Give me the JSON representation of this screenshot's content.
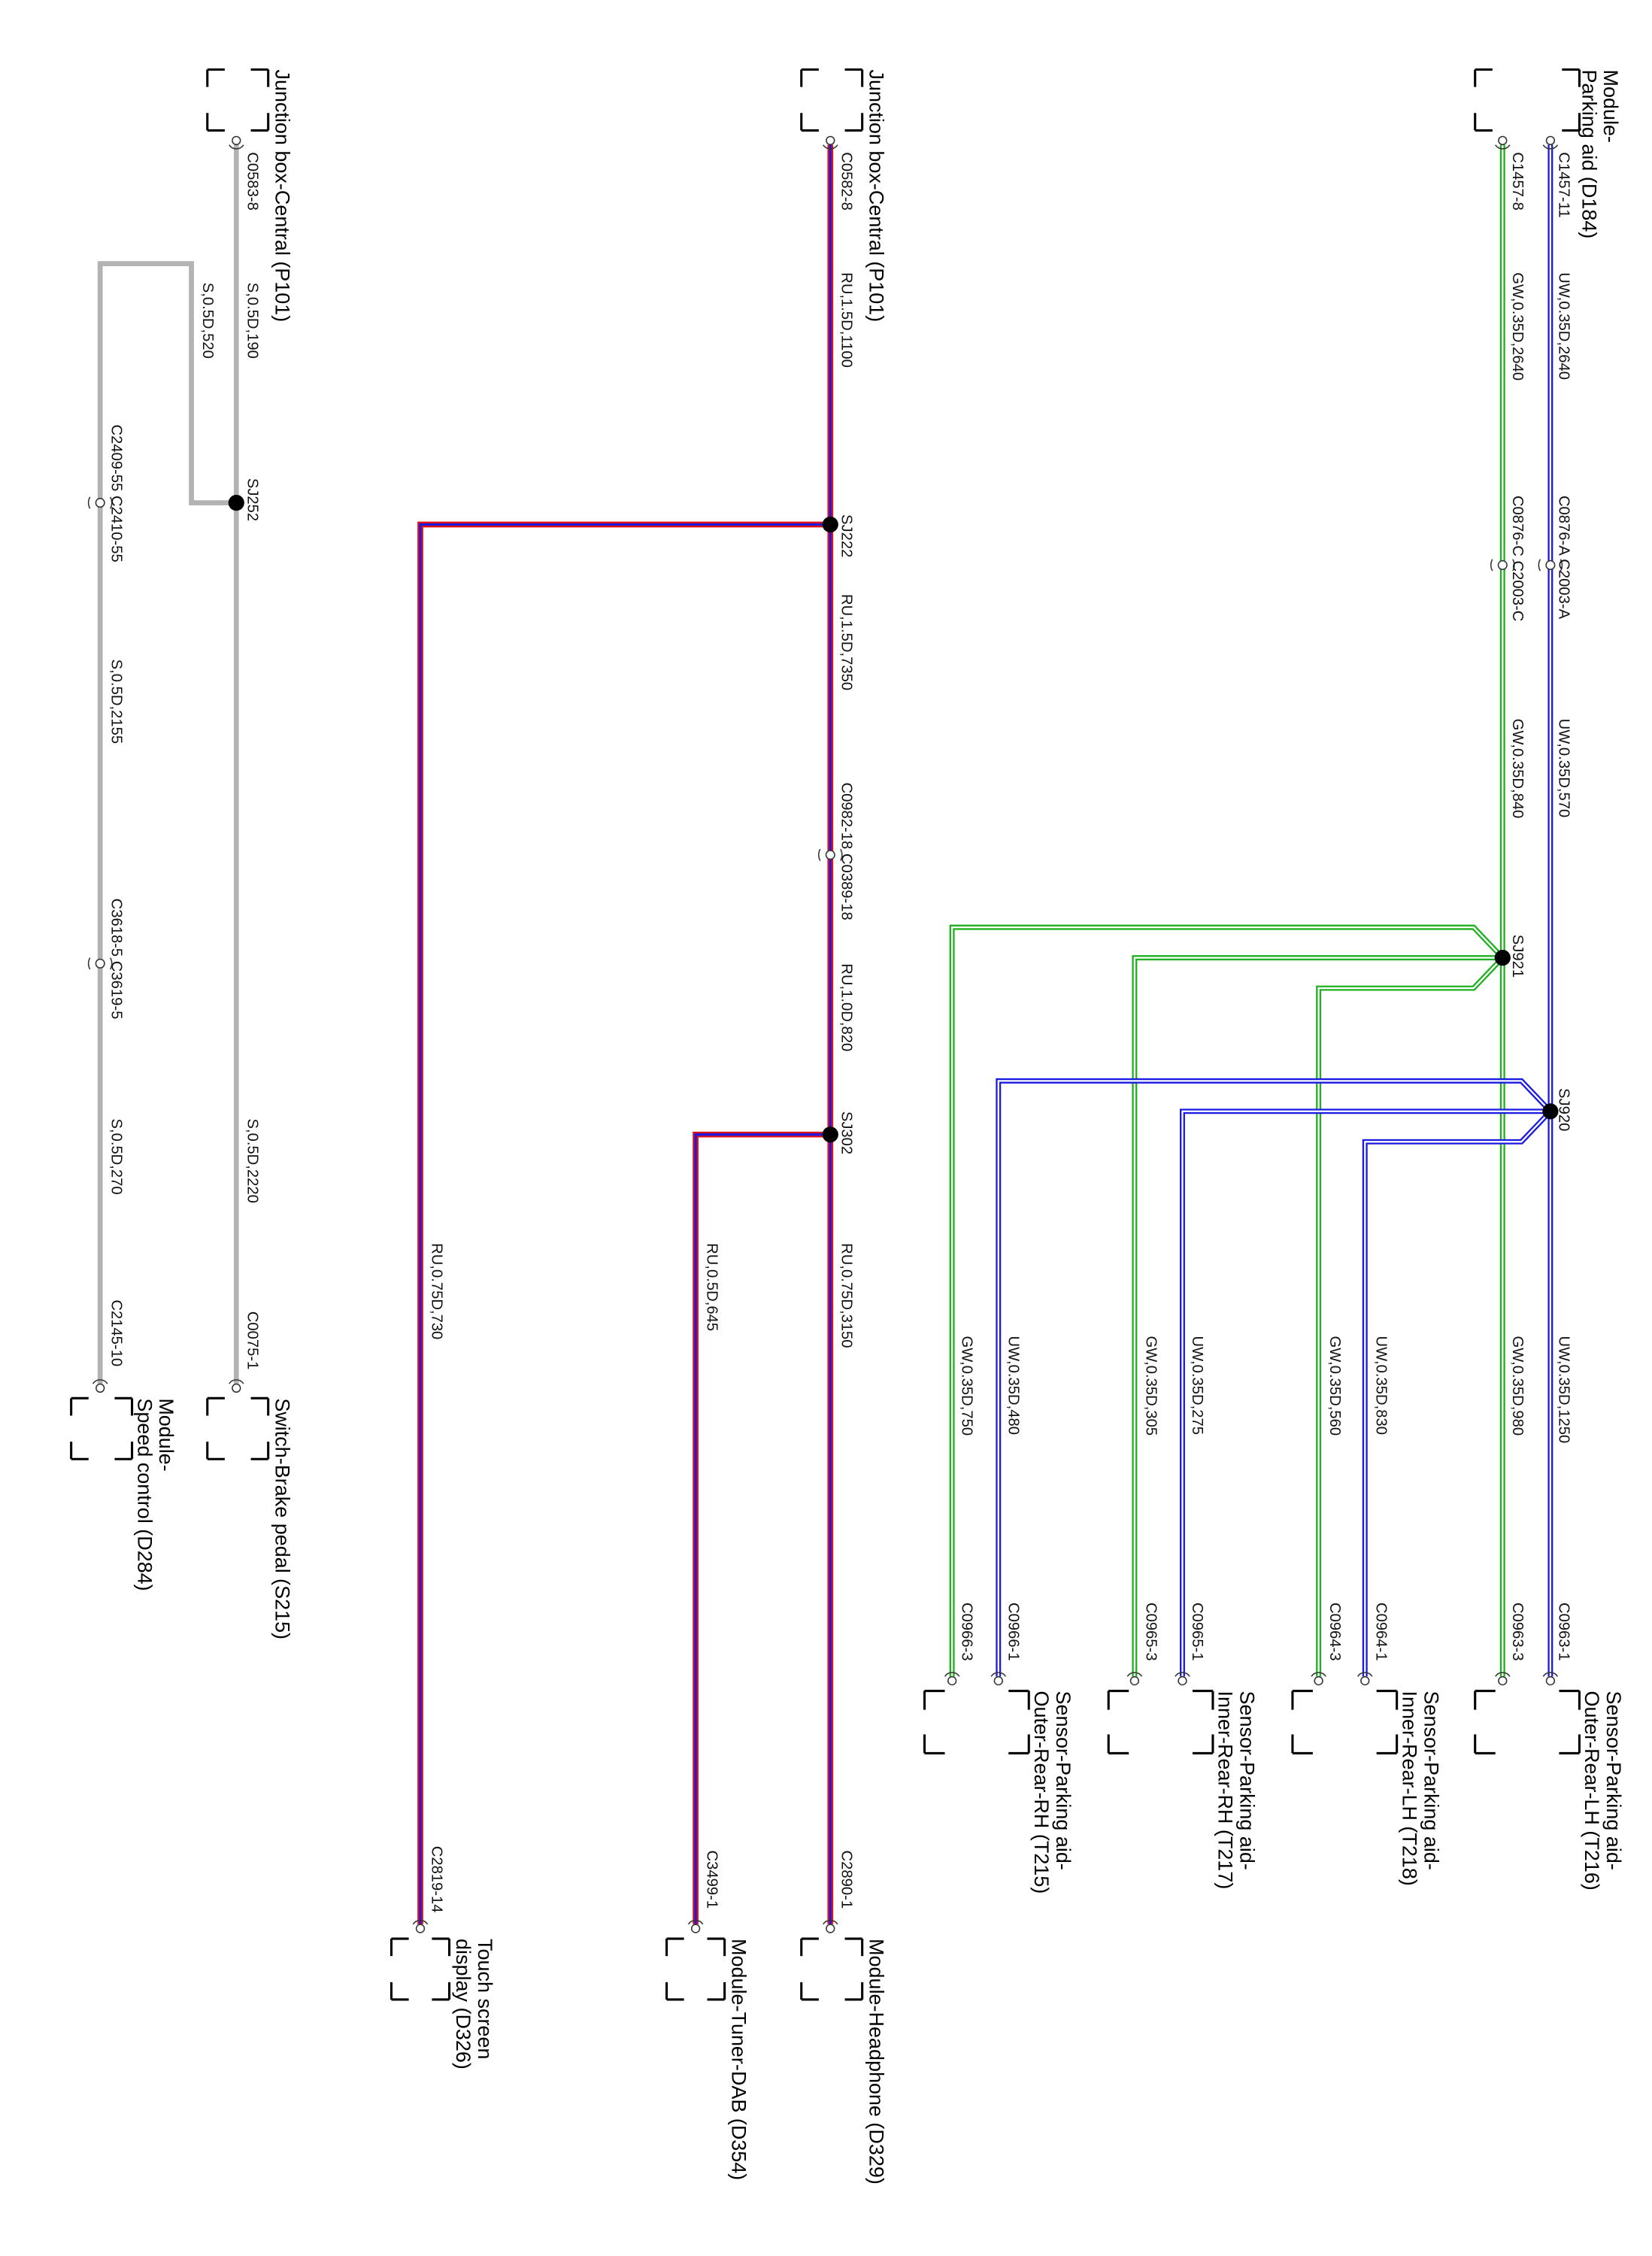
{
  "colors": {
    "green_wire": "#1fb01f",
    "blue_wire": "#1a1ae0",
    "red_wire": "#e0101a",
    "gray_wire": "#b3b3b3"
  },
  "parking": {
    "module": {
      "line1": "Module-",
      "line2": "Parking aid (D184)"
    },
    "pin_blue": "C1457-11",
    "pin_green": "C1457-8",
    "wire_blue_1": "UW,0.35D,2640",
    "wire_green_1": "GW,0.35D,2640",
    "inline_blue": "C0876-A C2003-A",
    "inline_green": "C0876-C C2003-C",
    "wire_blue_2": "UW,0.35D,570",
    "wire_green_2": "GW,0.35D,840",
    "splice_green": "SJ921",
    "splice_blue": "SJ920",
    "sensors": [
      {
        "line1": "Sensor-Parking aid-",
        "line2": "Outer-Rear-LH (T216)",
        "wire_blue": "UW,0.35D,1250",
        "wire_green": "GW,0.35D,980",
        "pin_blue": "C0963-1",
        "pin_green": "C0963-3"
      },
      {
        "line1": "Sensor-Parking aid-",
        "line2": "Inner-Rear-LH (T218)",
        "wire_blue": "UW,0.35D,830",
        "wire_green": "GW,0.35D,560",
        "pin_blue": "C0964-1",
        "pin_green": "C0964-3"
      },
      {
        "line1": "Sensor-Parking aid-",
        "line2": "Inner-Rear-RH (T217)",
        "wire_blue": "UW,0.35D,275",
        "wire_green": "GW,0.35D,305",
        "pin_blue": "C0965-1",
        "pin_green": "C0965-3"
      },
      {
        "line1": "Sensor-Parking aid-",
        "line2": "Outer-Rear-RH (T215)",
        "wire_blue": "UW,0.35D,480",
        "wire_green": "GW,0.35D,750",
        "pin_blue": "C0966-1",
        "pin_green": "C0966-3"
      }
    ]
  },
  "audio": {
    "junction": "Junction box-Central (P101)",
    "pin": "C0582-8",
    "wire_1": "RU,1.5D,1100",
    "splice_1": "SJ222",
    "wire_2": "RU,1.5D,7350",
    "inline": "C0982-18 C0389-18",
    "wire_3": "RU,1.0D,820",
    "splice_2": "SJ302",
    "wire_headphone": "RU,0.75D,3150",
    "wire_tuner": "RU,0.5D,645",
    "wire_touch": "RU,0.75D,730",
    "pin_headphone": "C2890-1",
    "pin_tuner": "C3499-1",
    "pin_touch": "C2819-14",
    "headphone": "Module-Headphone (D329)",
    "tuner": "Module-Tuner-DAB (D354)",
    "touch": {
      "line1": "Touch screen",
      "line2": "display (D326)"
    }
  },
  "brake": {
    "junction": "Junction box-Central (P101)",
    "pin": "C0583-8",
    "wire_1": "S,0.5D,190",
    "wire_branch": "S,0.5D,520",
    "splice": "SJ252",
    "inline_1": "C2409-55 C2410-55",
    "wire_2": "S,0.5D,2155",
    "inline_2": "C3618-5 C3619-5",
    "wire_3": "S,0.5D,270",
    "pin_speed": "C2145-10",
    "wire_switch": "S,0.5D,2220",
    "pin_switch": "C0075-1",
    "switch": "Switch-Brake pedal (S215)",
    "speed": {
      "line1": "Module-",
      "line2": "Speed control (D284)"
    }
  }
}
